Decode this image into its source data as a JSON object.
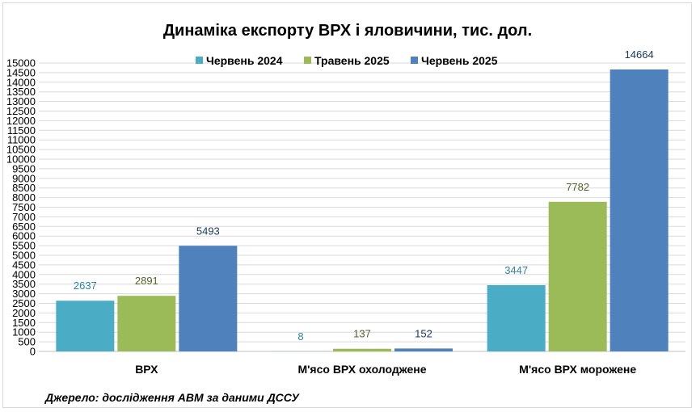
{
  "chart_data": {
    "type": "bar",
    "title": "Динаміка експорту ВРХ і яловичини, тис. дол.",
    "categories": [
      "ВРХ",
      "М'ясо ВРХ охолоджене",
      "М'ясо ВРХ морожене"
    ],
    "series": [
      {
        "name": "Червень 2024",
        "color": "#4bacc6",
        "label_color": "#31849b",
        "values": [
          2637,
          8,
          3447
        ]
      },
      {
        "name": "Травень 2025",
        "color": "#9bbb59",
        "label_color": "#4f6228",
        "values": [
          2891,
          137,
          7782
        ]
      },
      {
        "name": "Червень 2025",
        "color": "#4f81bd",
        "label_color": "#17375e",
        "values": [
          5493,
          152,
          14664
        ]
      }
    ],
    "ylim": [
      0,
      15000
    ],
    "ytick_step": 500,
    "xlabel": "",
    "ylabel": "",
    "grid": true,
    "legend_position": "top"
  },
  "footer": {
    "source": "Джерело: дослідження АВМ за даними ДССУ"
  }
}
